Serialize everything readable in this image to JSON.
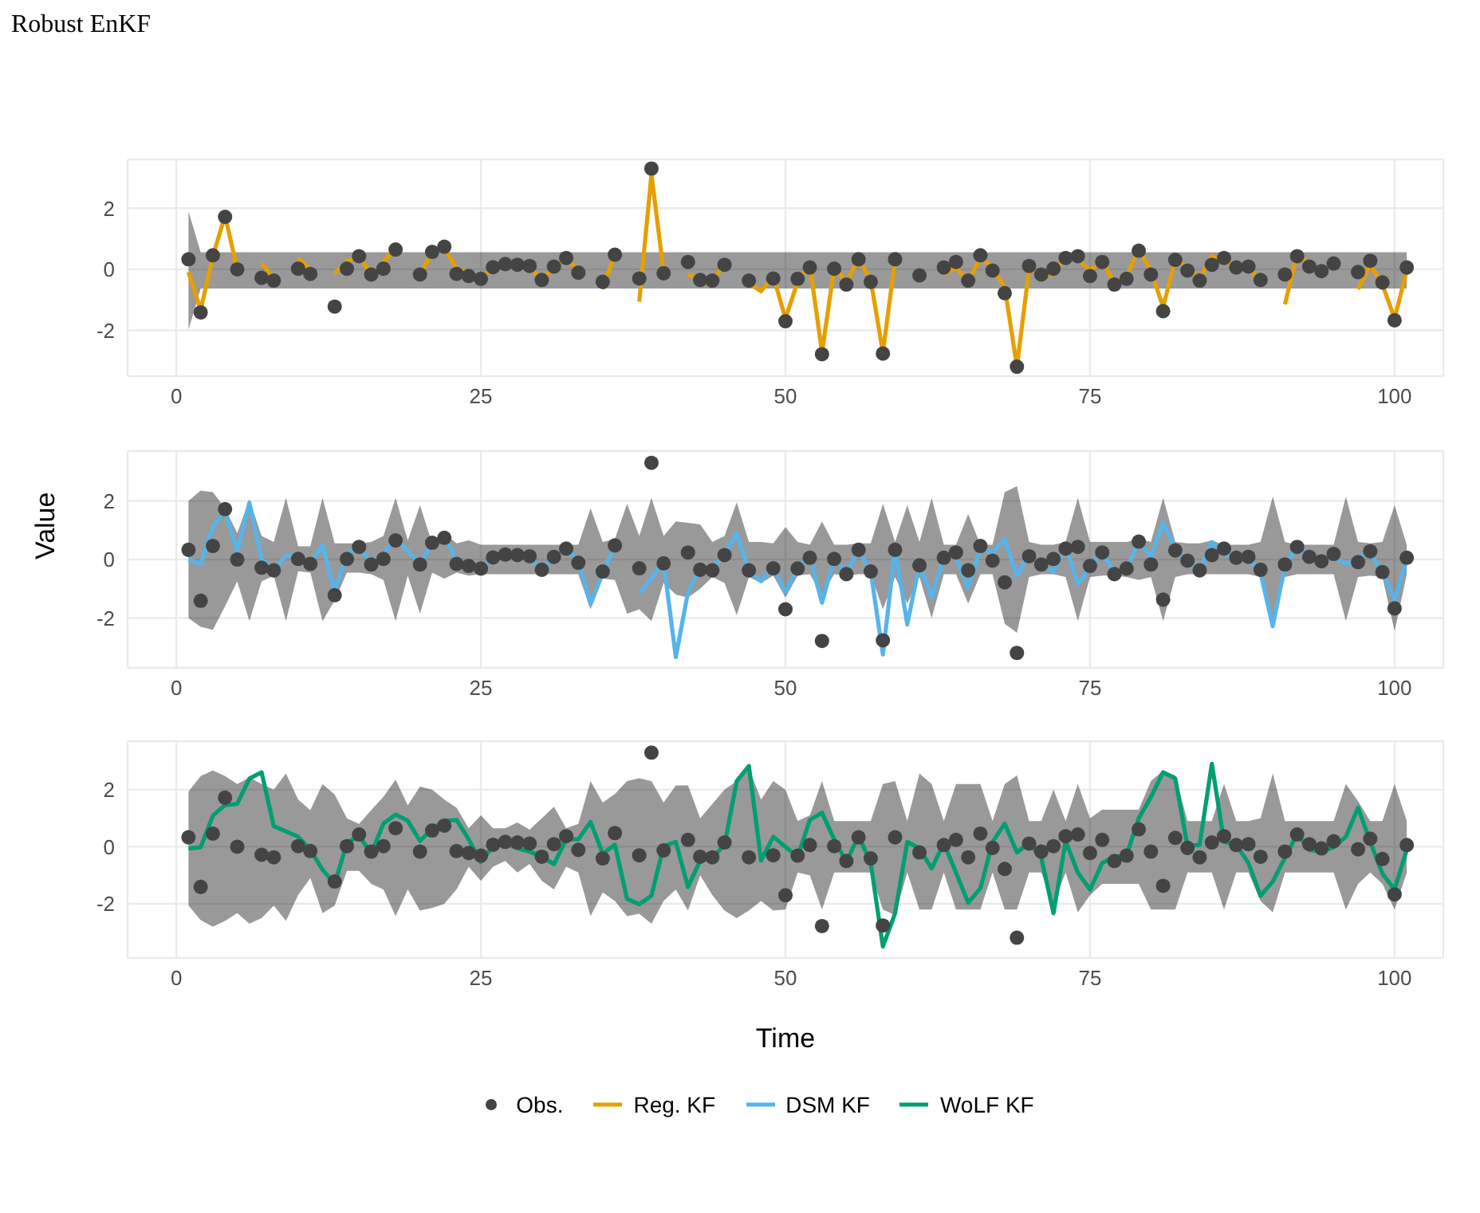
{
  "chart_data": [
    {
      "type": "line",
      "title": "Robust EnKF",
      "xlim": [
        -4,
        104
      ],
      "xticks": [
        0,
        25,
        50,
        75,
        100
      ],
      "ylim": [
        -3.5,
        3.6
      ],
      "yticks": [
        -2,
        0,
        2
      ],
      "grid": true,
      "legend": "bottom",
      "x": [
        1,
        2,
        3,
        4,
        5,
        6,
        7,
        8,
        9,
        10,
        11,
        12,
        13,
        14,
        15,
        16,
        17,
        18,
        19,
        20,
        21,
        22,
        23,
        24,
        25,
        26,
        27,
        28,
        29,
        30,
        31,
        32,
        33,
        34,
        35,
        36,
        37,
        38,
        39,
        40,
        41,
        42,
        43,
        44,
        45,
        46,
        47,
        48,
        49,
        50,
        51,
        52,
        53,
        54,
        55,
        56,
        57,
        58,
        59,
        60,
        61,
        62,
        63,
        64,
        65,
        66,
        67,
        68,
        69,
        70,
        71,
        72,
        73,
        74,
        75,
        76,
        77,
        78,
        79,
        80,
        81,
        82,
        83,
        84,
        85,
        86,
        87,
        88,
        89,
        90,
        91,
        92,
        93,
        94,
        95,
        96,
        97,
        98,
        99,
        100,
        101
      ],
      "series": [
        {
          "name": "Obs.",
          "type": "scatter",
          "marker": "circle",
          "color": "#444444",
          "values": [
            0.33,
            -1.41,
            0.46,
            1.72,
            0.0,
            null,
            -0.28,
            -0.37,
            null,
            0.02,
            -0.15,
            null,
            -1.22,
            0.02,
            0.43,
            -0.17,
            0.02,
            0.65,
            null,
            -0.17,
            0.57,
            0.74,
            -0.15,
            -0.22,
            -0.31,
            0.07,
            0.17,
            0.15,
            0.11,
            -0.35,
            0.09,
            0.37,
            -0.11,
            null,
            -0.41,
            0.48,
            null,
            -0.3,
            3.3,
            -0.13,
            null,
            0.24,
            -0.35,
            -0.37,
            0.15,
            null,
            -0.37,
            null,
            -0.3,
            -1.7,
            -0.31,
            0.06,
            -2.78,
            0.02,
            -0.5,
            0.33,
            -0.41,
            -2.76,
            0.33,
            null,
            -0.2,
            null,
            0.06,
            0.24,
            -0.37,
            0.46,
            -0.04,
            -0.78,
            -3.19,
            0.11,
            -0.17,
            0.02,
            0.37,
            0.43,
            -0.22,
            0.24,
            -0.5,
            -0.31,
            0.61,
            -0.17,
            -1.37,
            0.31,
            -0.04,
            -0.37,
            0.15,
            0.37,
            0.06,
            0.09,
            -0.35,
            null,
            -0.17,
            0.43,
            0.09,
            -0.06,
            0.19,
            null,
            -0.09,
            0.28,
            -0.43,
            -1.67,
            0.06
          ]
        },
        {
          "name": "Reg. KF",
          "color": "#e69f00",
          "values": [
            -0.09,
            -1.33,
            0.43,
            1.76,
            0.0,
            null,
            0.19,
            -0.28,
            null,
            0.37,
            -0.04,
            null,
            -0.13,
            0.24,
            0.46,
            -0.22,
            0.24,
            0.7,
            null,
            -0.17,
            0.57,
            0.7,
            0.02,
            -0.09,
            -0.31,
            0.06,
            0.15,
            0.15,
            0.06,
            -0.35,
            0.06,
            0.39,
            -0.04,
            null,
            -0.65,
            0.52,
            null,
            -1.06,
            3.11,
            -0.09,
            null,
            -0.17,
            -0.31,
            -0.35,
            0.15,
            null,
            -0.46,
            -0.72,
            -0.22,
            -1.61,
            -0.41,
            0.15,
            -2.72,
            0.06,
            -0.41,
            0.33,
            -0.35,
            -2.72,
            0.33,
            null,
            null,
            null,
            -0.17,
            0.06,
            -0.41,
            0.39,
            0.06,
            -0.59,
            -3.19,
            0.02,
            -0.17,
            -0.17,
            0.43,
            0.33,
            -0.04,
            0.28,
            -0.46,
            -0.22,
            0.65,
            -0.04,
            -1.24,
            0.33,
            0.06,
            -0.31,
            0.43,
            0.24,
            0.15,
            0.06,
            -0.41,
            null,
            -1.15,
            0.52,
            0.15,
            -0.04,
            0.15,
            null,
            -0.65,
            0.15,
            -0.5,
            -1.61,
            -0.04
          ],
          "upper": [
            1.9,
            0.56,
            0.56,
            0.56,
            0.56,
            0.56,
            0.56,
            0.56,
            0.56,
            0.56,
            0.56,
            0.56,
            0.56,
            0.56,
            0.56,
            0.56,
            0.56,
            0.56,
            0.56,
            0.56,
            0.56,
            0.56,
            0.56,
            0.56,
            0.56,
            0.56,
            0.56,
            0.56,
            0.56,
            0.56,
            0.56,
            0.56,
            0.56,
            0.56,
            0.56,
            0.56,
            0.56,
            0.56,
            0.56,
            0.56,
            0.56,
            0.56,
            0.56,
            0.56,
            0.56,
            0.56,
            0.56,
            0.56,
            0.56,
            0.56,
            0.56,
            0.56,
            0.56,
            0.56,
            0.56,
            0.56,
            0.56,
            0.56,
            0.56,
            0.56,
            0.56,
            0.56,
            0.56,
            0.56,
            0.56,
            0.56,
            0.56,
            0.56,
            0.56,
            0.56,
            0.56,
            0.56,
            0.56,
            0.56,
            0.56,
            0.56,
            0.56,
            0.56,
            0.56,
            0.56,
            0.56,
            0.56,
            0.56,
            0.56,
            0.56,
            0.56,
            0.56,
            0.56,
            0.56,
            0.56,
            0.56,
            0.56,
            0.56,
            0.56,
            0.56,
            0.56,
            0.56,
            0.56,
            0.56,
            0.56,
            0.56
          ],
          "lower": [
            -1.98,
            -0.63,
            -0.63,
            -0.63,
            -0.63,
            -0.63,
            -0.63,
            -0.63,
            -0.63,
            -0.63,
            -0.63,
            -0.63,
            -0.63,
            -0.63,
            -0.63,
            -0.63,
            -0.63,
            -0.63,
            -0.63,
            -0.63,
            -0.63,
            -0.63,
            -0.63,
            -0.63,
            -0.63,
            -0.63,
            -0.63,
            -0.63,
            -0.63,
            -0.63,
            -0.63,
            -0.63,
            -0.63,
            -0.63,
            -0.63,
            -0.63,
            -0.63,
            -0.63,
            -0.63,
            -0.63,
            -0.63,
            -0.63,
            -0.63,
            -0.63,
            -0.63,
            -0.63,
            -0.63,
            -0.63,
            -0.63,
            -0.63,
            -0.63,
            -0.63,
            -0.63,
            -0.63,
            -0.63,
            -0.63,
            -0.63,
            -0.63,
            -0.63,
            -0.63,
            -0.63,
            -0.63,
            -0.63,
            -0.63,
            -0.63,
            -0.63,
            -0.63,
            -0.63,
            -0.63,
            -0.63,
            -0.63,
            -0.63,
            -0.63,
            -0.63,
            -0.63,
            -0.63,
            -0.63,
            -0.63,
            -0.63,
            -0.63,
            -0.63,
            -0.63,
            -0.63,
            -0.63,
            -0.63,
            -0.63,
            -0.63,
            -0.63,
            -0.63,
            -0.63,
            -0.63,
            -0.63,
            -0.63,
            -0.63,
            -0.63,
            -0.63,
            -0.63,
            -0.63,
            -0.63,
            -0.63,
            -0.63
          ]
        }
      ]
    },
    {
      "type": "line",
      "ylabel": "Value",
      "xlim": [
        -4,
        104
      ],
      "xticks": [
        0,
        25,
        50,
        75,
        100
      ],
      "ylim": [
        -3.7,
        3.7
      ],
      "yticks": [
        -2,
        0,
        2
      ],
      "grid": true,
      "legend": "bottom",
      "x": [
        1,
        2,
        3,
        4,
        5,
        6,
        7,
        8,
        9,
        10,
        11,
        12,
        13,
        14,
        15,
        16,
        17,
        18,
        19,
        20,
        21,
        22,
        23,
        24,
        25,
        26,
        27,
        28,
        29,
        30,
        31,
        32,
        33,
        34,
        35,
        36,
        37,
        38,
        39,
        40,
        41,
        42,
        43,
        44,
        45,
        46,
        47,
        48,
        49,
        50,
        51,
        52,
        53,
        54,
        55,
        56,
        57,
        58,
        59,
        60,
        61,
        62,
        63,
        64,
        65,
        66,
        67,
        68,
        69,
        70,
        71,
        72,
        73,
        74,
        75,
        76,
        77,
        78,
        79,
        80,
        81,
        82,
        83,
        84,
        85,
        86,
        87,
        88,
        89,
        90,
        91,
        92,
        93,
        94,
        95,
        96,
        97,
        98,
        99,
        100,
        101
      ],
      "series": [
        {
          "name": "Obs.",
          "type": "scatter",
          "marker": "circle",
          "color": "#444444",
          "values": [
            0.33,
            -1.41,
            0.46,
            1.72,
            0.0,
            null,
            -0.28,
            -0.37,
            null,
            0.02,
            -0.15,
            null,
            -1.22,
            0.02,
            0.43,
            -0.17,
            0.02,
            0.65,
            null,
            -0.17,
            0.57,
            0.74,
            -0.15,
            -0.22,
            -0.31,
            0.07,
            0.17,
            0.15,
            0.11,
            -0.35,
            0.09,
            0.37,
            -0.11,
            null,
            -0.41,
            0.48,
            null,
            -0.3,
            3.3,
            -0.13,
            null,
            0.24,
            -0.35,
            -0.37,
            0.15,
            null,
            -0.37,
            null,
            -0.3,
            -1.7,
            -0.31,
            0.06,
            -2.78,
            0.02,
            -0.5,
            0.33,
            -0.41,
            -2.76,
            0.33,
            null,
            -0.2,
            null,
            0.06,
            0.24,
            -0.37,
            0.46,
            -0.04,
            -0.78,
            -3.19,
            0.11,
            -0.17,
            0.02,
            0.37,
            0.43,
            -0.22,
            0.24,
            -0.5,
            -0.31,
            0.61,
            -0.17,
            -1.37,
            0.31,
            -0.04,
            -0.37,
            0.15,
            0.37,
            0.06,
            0.09,
            -0.35,
            null,
            -0.17,
            0.43,
            0.09,
            -0.06,
            0.19,
            null,
            -0.09,
            0.28,
            -0.43,
            -1.67,
            0.06
          ]
        },
        {
          "name": "DSM KF",
          "color": "#56b4e9",
          "values": [
            0,
            -0.15,
            1.11,
            1.67,
            0.28,
            1.94,
            0,
            -0.33,
            0.13,
            0.09,
            -0.15,
            0.5,
            -1.11,
            0.19,
            0.46,
            -0.09,
            0.19,
            0.74,
            0.28,
            -0.15,
            0.56,
            0.83,
            -0.04,
            -0.15,
            -0.33,
            0.09,
            0.19,
            0.15,
            0.04,
            -0.33,
            0.09,
            0.41,
            -0.04,
            -1.52,
            -0.46,
            0.46,
            null,
            -1.15,
            -0.65,
            -0.09,
            -3.33,
            -1.11,
            -0.28,
            -0.33,
            0.19,
            0.89,
            -0.41,
            -0.74,
            -0.28,
            -1.11,
            -0.28,
            0.09,
            -1.48,
            0.04,
            -0.46,
            0.31,
            -0.41,
            -3.24,
            0.37,
            -2.22,
            -0.15,
            -1.3,
            0.09,
            0.09,
            -0.96,
            0.37,
            0.22,
            0.7,
            -0.56,
            0.19,
            -0.19,
            -0.41,
            0.46,
            -0.83,
            -0.28,
            0.22,
            -0.46,
            -0.37,
            0.65,
            0.09,
            1.26,
            0.33,
            0,
            -0.37,
            0.59,
            0.19,
            0.09,
            0.04,
            -0.46,
            -2.28,
            -0.22,
            0.41,
            0,
            -0.04,
            0.09,
            -0.15,
            0.04,
            0.22,
            -0.41,
            -1.39,
            0
          ],
          "upper": [
            2.0,
            2.35,
            2.3,
            1.75,
            0.9,
            2.05,
            0.8,
            0.6,
            2.1,
            0.45,
            0.45,
            2.1,
            0.55,
            0.55,
            0.55,
            0.6,
            0.8,
            2.1,
            0.65,
            1.85,
            0.55,
            0.9,
            0.55,
            0.65,
            0.5,
            0.5,
            0.5,
            0.5,
            0.5,
            0.5,
            0.5,
            0.5,
            0.5,
            1.75,
            0.6,
            0.7,
            1.9,
            0.8,
            2.1,
            0.8,
            1.3,
            1.25,
            1.2,
            0.6,
            0.8,
            1.95,
            0.6,
            0.6,
            0.55,
            1.1,
            0.6,
            0.5,
            1.3,
            0.5,
            0.5,
            0.55,
            0.55,
            1.9,
            0.6,
            1.85,
            0.6,
            2.1,
            0.5,
            0.5,
            1.55,
            0.5,
            0.5,
            2.3,
            2.5,
            0.6,
            0.5,
            0.5,
            0.6,
            2.1,
            0.6,
            0.6,
            0.6,
            0.6,
            0.7,
            0.6,
            2.1,
            0.6,
            0.55,
            0.55,
            0.65,
            0.5,
            0.5,
            0.5,
            0.6,
            2.15,
            0.6,
            0.5,
            0.5,
            0.5,
            0.5,
            2.15,
            0.6,
            0.55,
            0.6,
            1.85,
            0.5
          ],
          "lower": [
            -2.0,
            -2.3,
            -2.4,
            -1.6,
            -0.75,
            -2.1,
            -0.75,
            -0.55,
            -2.1,
            -0.4,
            -0.45,
            -2.1,
            -1.4,
            -0.45,
            -0.45,
            -0.5,
            -0.7,
            -2.1,
            -0.55,
            -1.85,
            -0.45,
            -0.65,
            -0.45,
            -0.55,
            -0.5,
            -0.5,
            -0.5,
            -0.5,
            -0.5,
            -0.5,
            -0.5,
            -0.5,
            -0.5,
            -1.7,
            -0.65,
            -0.7,
            -1.85,
            -1.7,
            -2.1,
            -0.8,
            -1.2,
            -1.3,
            -1.0,
            -0.6,
            -0.8,
            -1.9,
            -0.6,
            -0.8,
            -0.55,
            -1.3,
            -0.55,
            -0.5,
            -1.2,
            -0.5,
            -0.55,
            -0.5,
            -0.5,
            -1.7,
            -0.6,
            -1.5,
            -0.6,
            -2.0,
            -0.5,
            -0.5,
            -1.5,
            -0.5,
            -0.5,
            -2.2,
            -2.5,
            -0.6,
            -0.5,
            -0.5,
            -0.6,
            -2.1,
            -0.6,
            -0.55,
            -0.55,
            -0.6,
            -0.7,
            -0.6,
            -2.1,
            -0.6,
            -0.5,
            -0.5,
            -0.5,
            -0.5,
            -0.5,
            -0.5,
            -0.6,
            -2.2,
            -0.6,
            -0.5,
            -0.5,
            -0.5,
            -0.5,
            -2.1,
            -0.6,
            -0.55,
            -0.6,
            -2.45,
            -0.5
          ]
        }
      ]
    },
    {
      "type": "line",
      "xlabel": "Time",
      "xlim": [
        -4,
        104
      ],
      "xticks": [
        0,
        25,
        50,
        75,
        100
      ],
      "ylim": [
        -3.9,
        3.7
      ],
      "yticks": [
        -2,
        0,
        2
      ],
      "grid": true,
      "legend": "bottom",
      "x": [
        1,
        2,
        3,
        4,
        5,
        6,
        7,
        8,
        9,
        10,
        11,
        12,
        13,
        14,
        15,
        16,
        17,
        18,
        19,
        20,
        21,
        22,
        23,
        24,
        25,
        26,
        27,
        28,
        29,
        30,
        31,
        32,
        33,
        34,
        35,
        36,
        37,
        38,
        39,
        40,
        41,
        42,
        43,
        44,
        45,
        46,
        47,
        48,
        49,
        50,
        51,
        52,
        53,
        54,
        55,
        56,
        57,
        58,
        59,
        60,
        61,
        62,
        63,
        64,
        65,
        66,
        67,
        68,
        69,
        70,
        71,
        72,
        73,
        74,
        75,
        76,
        77,
        78,
        79,
        80,
        81,
        82,
        83,
        84,
        85,
        86,
        87,
        88,
        89,
        90,
        91,
        92,
        93,
        94,
        95,
        96,
        97,
        98,
        99,
        100,
        101
      ],
      "series": [
        {
          "name": "Obs.",
          "type": "scatter",
          "marker": "circle",
          "color": "#444444",
          "values": [
            0.33,
            -1.41,
            0.46,
            1.72,
            0.0,
            null,
            -0.28,
            -0.37,
            null,
            0.02,
            -0.15,
            null,
            -1.22,
            0.02,
            0.43,
            -0.17,
            0.02,
            0.65,
            null,
            -0.17,
            0.57,
            0.74,
            -0.15,
            -0.22,
            -0.31,
            0.07,
            0.17,
            0.15,
            0.11,
            -0.35,
            0.09,
            0.37,
            -0.11,
            null,
            -0.41,
            0.48,
            null,
            -0.3,
            3.3,
            -0.13,
            null,
            0.24,
            -0.35,
            -0.37,
            0.15,
            null,
            -0.37,
            null,
            -0.3,
            -1.7,
            -0.31,
            0.06,
            -2.78,
            0.02,
            -0.5,
            0.33,
            -0.41,
            -2.76,
            0.33,
            null,
            -0.2,
            null,
            0.06,
            0.24,
            -0.37,
            0.46,
            -0.04,
            -0.78,
            -3.19,
            0.11,
            -0.17,
            0.02,
            0.37,
            0.43,
            -0.22,
            0.24,
            -0.5,
            -0.31,
            0.61,
            -0.17,
            -1.37,
            0.31,
            -0.04,
            -0.37,
            0.15,
            0.37,
            0.06,
            0.09,
            -0.35,
            null,
            -0.17,
            0.43,
            0.09,
            -0.06,
            0.19,
            null,
            -0.09,
            0.28,
            -0.43,
            -1.67,
            0.06
          ]
        },
        {
          "name": "WoLF KF",
          "color": "#009e73",
          "values": [
            -0.06,
            -0.02,
            1.09,
            1.46,
            1.5,
            2.39,
            2.61,
            0.72,
            0.54,
            0.35,
            -0.11,
            -0.8,
            -1.31,
            0.13,
            0.39,
            -0.24,
            0.81,
            1.13,
            0.91,
            0.2,
            0.63,
            0.91,
            0.94,
            0.26,
            -0.54,
            0.02,
            0.13,
            -0.06,
            -0.17,
            -0.35,
            -0.61,
            0.26,
            0.26,
            0.87,
            -0.24,
            0.07,
            -1.83,
            -2.02,
            -1.72,
            0.02,
            0.17,
            -1.41,
            -0.48,
            -0.39,
            0.07,
            2.3,
            2.83,
            -0.48,
            0.35,
            0.0,
            -0.35,
            0.94,
            1.19,
            0.26,
            -0.54,
            0.39,
            -0.57,
            -3.5,
            -2.33,
            0.17,
            -0.06,
            -0.76,
            0.13,
            -0.91,
            -1.96,
            -1.46,
            0.17,
            0.81,
            -0.2,
            0.13,
            -0.39,
            -2.33,
            0.2,
            -0.91,
            -1.5,
            -0.57,
            -0.35,
            -0.3,
            1.0,
            1.74,
            2.61,
            2.39,
            0.02,
            0.07,
            2.91,
            0.17,
            0.07,
            -0.57,
            -1.72,
            -1.22,
            -0.39,
            0.44,
            -0.11,
            -0.17,
            -0.02,
            0.35,
            1.37,
            0.17,
            -0.94,
            -1.5,
            -0.11
          ],
          "upper": [
            1.93,
            2.48,
            2.67,
            2.48,
            2.2,
            2.43,
            2.2,
            2.0,
            2.57,
            1.65,
            1.28,
            2.2,
            1.83,
            1.0,
            0.8,
            1.28,
            1.75,
            2.35,
            1.45,
            2.11,
            2.0,
            1.65,
            1.37,
            0.65,
            1.1,
            0.65,
            0.65,
            0.85,
            0.6,
            1.0,
            1.4,
            0.65,
            0.8,
            2.3,
            1.55,
            1.85,
            2.3,
            2.4,
            2.3,
            1.55,
            2.15,
            2.15,
            1.0,
            1.5,
            2.0,
            2.3,
            2.75,
            1.65,
            2.3,
            2.0,
            0.9,
            1.1,
            2.3,
            0.9,
            0.9,
            0.9,
            0.9,
            2.2,
            2.3,
            0.9,
            2.57,
            2.2,
            0.9,
            2.2,
            2.2,
            2.2,
            0.9,
            2.2,
            2.5,
            0.9,
            0.9,
            2.0,
            0.9,
            2.2,
            1.0,
            1.3,
            1.3,
            1.3,
            1.3,
            2.3,
            2.67,
            2.5,
            0.9,
            0.9,
            0.9,
            2.2,
            0.9,
            0.9,
            1.0,
            2.57,
            0.9,
            0.9,
            0.9,
            0.9,
            0.9,
            2.2,
            1.6,
            0.9,
            0.9,
            2.2,
            0.9
          ],
          "lower": [
            -2.06,
            -2.57,
            -2.8,
            -2.6,
            -2.33,
            -2.7,
            -2.5,
            -2.06,
            -2.6,
            -1.69,
            -1.1,
            -2.33,
            -2.06,
            -0.85,
            -0.85,
            -1.3,
            -1.5,
            -2.43,
            -1.5,
            -2.24,
            -2.15,
            -2.0,
            -1.5,
            -0.7,
            -1.2,
            -0.7,
            -0.5,
            -0.9,
            -0.6,
            -1.2,
            -1.5,
            -0.7,
            -0.9,
            -2.43,
            -1.6,
            -1.9,
            -2.43,
            -2.35,
            -2.7,
            -1.9,
            -1.5,
            -2.24,
            -1.0,
            -1.7,
            -2.24,
            -2.5,
            -2.24,
            -1.9,
            -2.24,
            -2.2,
            -0.9,
            -1.0,
            -2.2,
            -0.9,
            -0.9,
            -0.9,
            -0.9,
            -2.2,
            -2.4,
            -0.9,
            -2.2,
            -2.2,
            -0.9,
            -2.2,
            -2.2,
            -2.2,
            -0.9,
            -2.2,
            -2.2,
            -0.9,
            -0.9,
            -2.0,
            -0.9,
            -2.3,
            -1.7,
            -1.3,
            -1.3,
            -1.3,
            -1.3,
            -2.2,
            -2.2,
            -2.2,
            -0.9,
            -0.9,
            -0.9,
            -2.2,
            -0.9,
            -0.9,
            -1.9,
            -2.3,
            -0.9,
            -0.9,
            -0.9,
            -0.9,
            -0.9,
            -2.2,
            -1.3,
            -0.9,
            -1.3,
            -2.2,
            -0.9
          ]
        }
      ]
    }
  ]
}
